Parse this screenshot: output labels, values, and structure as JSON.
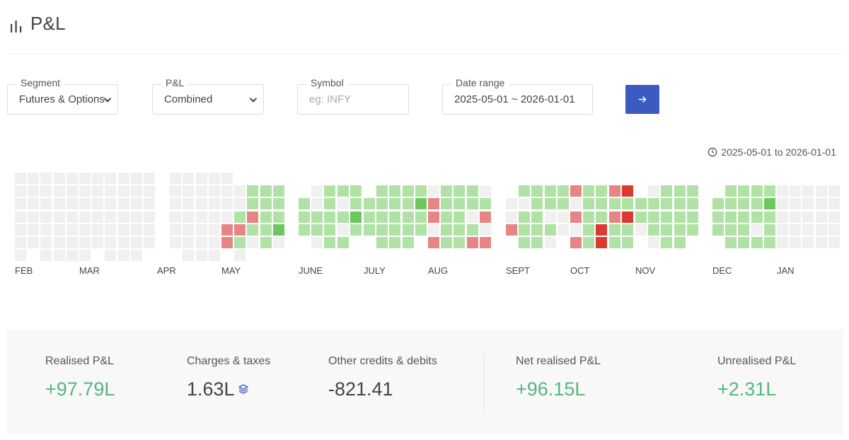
{
  "header": {
    "title": "P&L"
  },
  "filters": {
    "segment": {
      "label": "Segment",
      "value": "Futures & Options"
    },
    "pnl": {
      "label": "P&L",
      "value": "Combined"
    },
    "symbol": {
      "label": "Symbol",
      "placeholder": "eg: INFY"
    },
    "date_range": {
      "label": "Date range",
      "value": "2025-05-01 ~ 2026-01-01"
    }
  },
  "range_note": "2025-05-01 to 2026-01-01",
  "colors": {
    "empty": "#f0f0f0",
    "profit_light": "#b1e2a5",
    "profit_dark": "#6cc75e",
    "loss_light": "#e78584",
    "loss_dark": "#dc3a31",
    "accent": "#3a5cc0",
    "positive_text": "#56b57f"
  },
  "heatmap": {
    "months": [
      {
        "label": "FEB",
        "cols": [
          "........",
          "......",
          ".......",
          ".......",
          ".......",
          "......"
        ]
      },
      {
        "label": "MAR",
        "cols": [
          "........",
          "......",
          ".......",
          ".......",
          ".......",
          "......"
        ]
      },
      {
        "label": "APR",
        "cols": [
          "        ",
          "......",
          ".......",
          ".......",
          ".......",
          "......"
        ]
      },
      {
        "label": "MAY",
        "cols": [
          "    LL ",
          " ..gLg.",
          " ggLg. ",
          " ggggg ",
          " gggD. "
        ]
      },
      {
        "label": "JUNE",
        "cols": [
          "  ggg ",
          " ..gg.",
          " ggggg",
          " g.g.g",
          " ggDg "
        ]
      },
      {
        "label": "JULY",
        "cols": [
          "  ggg ",
          " ggggg",
          " ggggg",
          " ggggg",
          " gDgg "
        ]
      },
      {
        "label": "AUG",
        "cols": [
          " .LL.L",
          " ggggg",
          " ggggg",
          " gg.gL",
          " .gL.L "
        ]
      },
      {
        "label": "SEPT",
        "cols": [
          "  ..L ",
          " g.ggg",
          " ggggg",
          " gg.g.",
          " gg.. "
        ]
      },
      {
        "label": "OCT",
        "cols": [
          " L.L.L",
          " ggggg",
          " gggRR",
          " LgLgg",
          " RgRgg "
        ]
      },
      {
        "label": "NOV",
        "cols": [
          "  gg. ",
          " .ggg.",
          " ggggg",
          " ggggg",
          " gggg "
        ]
      },
      {
        "label": "DEC",
        "cols": [
          "  ggg ",
          " ggggg",
          " ggggg",
          " ggg.g",
          " gDggg "
        ]
      },
      {
        "label": "JAN",
        "cols": [
          " .....",
          " .....",
          " .....",
          " .....",
          " ..... "
        ]
      }
    ]
  },
  "summary": {
    "realised": {
      "label": "Realised P&L",
      "value": "+97.79L"
    },
    "charges": {
      "label": "Charges & taxes",
      "value": "1.63L"
    },
    "other": {
      "label": "Other credits & debits",
      "value": "-821.41"
    },
    "net": {
      "label": "Net realised P&L",
      "value": "+96.15L"
    },
    "unrealised": {
      "label": "Unrealised P&L",
      "value": "+2.31L"
    }
  }
}
